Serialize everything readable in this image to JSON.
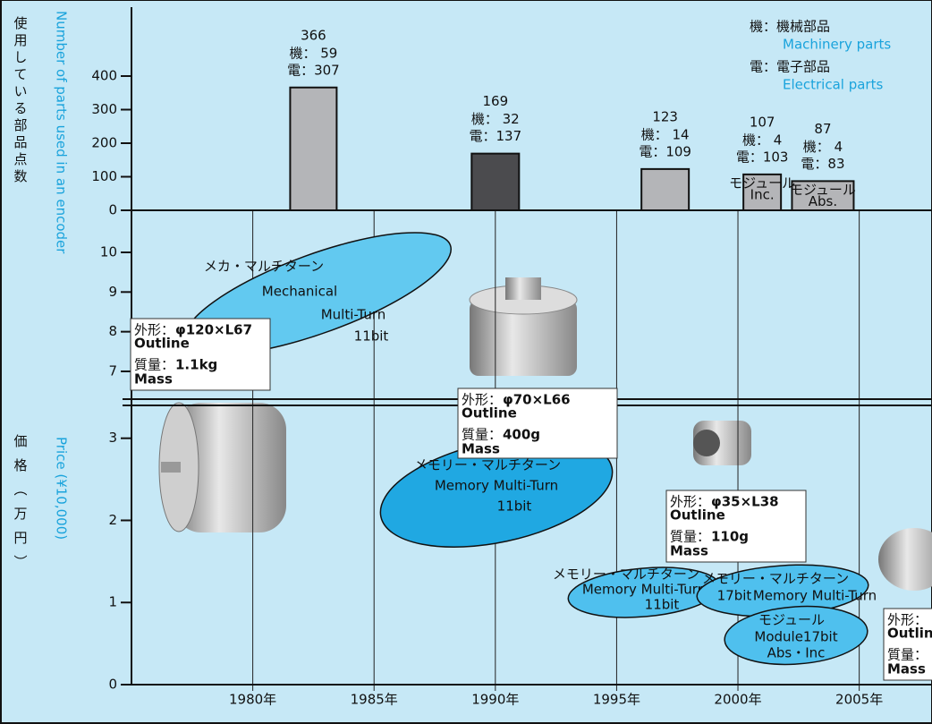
{
  "chart_data": {
    "type": "bar",
    "y_title": "使用している部品点数",
    "y_title_en": "Number of parts used in an encoder",
    "x": [
      1982.5,
      1990,
      1997,
      2001,
      2003.5
    ],
    "values": [
      366,
      169,
      123,
      107,
      87
    ],
    "colors": [
      "#b4b5b8",
      "#4b4b4e",
      "#b4b5b8",
      "#b4b5b8",
      "#b4b5b8"
    ],
    "breakdown": [
      {
        "name": "機：機械部品",
        "name_en": "Machinery parts",
        "values": [
          59,
          32,
          14,
          4,
          4
        ],
        "value_labels": [
          "機：  59",
          "機：  32",
          "機：  14",
          "機：   4",
          "機：  4"
        ]
      },
      {
        "name": "電：電子部品",
        "name_en": "Electrical parts",
        "values": [
          307,
          137,
          109,
          103,
          83
        ],
        "value_labels": [
          "電：307",
          "電：137",
          "電：109",
          "電：103",
          "電：83"
        ]
      }
    ],
    "annotations": [
      [
        "モジュール",
        "Inc."
      ],
      [
        "モジュール",
        "Abs."
      ]
    ],
    "ylim": [
      0,
      600
    ],
    "yticks": [
      0,
      100,
      200,
      300,
      400
    ],
    "xlim": [
      1975,
      2008
    ],
    "xticks": [
      {
        "value": 1980,
        "label": "1980年"
      },
      {
        "value": 1985,
        "label": "1985年"
      },
      {
        "value": 1990,
        "label": "1990年"
      },
      {
        "value": 1995,
        "label": "1995年"
      },
      {
        "value": 2000,
        "label": "2000年"
      },
      {
        "value": 2005,
        "label": "2005年"
      }
    ]
  },
  "price_chart": {
    "y_title": "価格（万円）",
    "y_title_en": "Price (¥10,000)",
    "upper_ylim": [
      6.3,
      11.06
    ],
    "upper_yticks": [
      7,
      8,
      9,
      10
    ],
    "lower_ylim": [
      0,
      3.4
    ],
    "lower_yticks": [
      0,
      1,
      2,
      3
    ]
  },
  "product_types": [
    {
      "lines": [
        "メカ・マルチターン",
        "Mechanical",
        "Multi-Turn",
        "11bit"
      ]
    },
    {
      "lines": [
        "メモリー・マルチターン",
        "Memory Multi-Turn",
        "11bit"
      ]
    },
    {
      "lines": [
        "メモリー・マルチターン",
        "Memory Multi-Turn",
        "11bit"
      ]
    },
    {
      "lines": [
        "メモリー・マルチターン",
        "17bit",
        "Memory Multi-Turn"
      ]
    },
    {
      "lines": [
        "モジュール",
        "Module17bit",
        "Abs・Inc"
      ]
    }
  ],
  "specs": [
    {
      "outline_label": "外形：",
      "outline": "φ120×L67",
      "outline_en": "Outline",
      "mass_label": "質量：",
      "mass": "1.1kg",
      "mass_en": "Mass"
    },
    {
      "outline_label": "外形：",
      "outline": "φ70×L66",
      "outline_en": "Outline",
      "mass_label": "質量：",
      "mass": "400g",
      "mass_en": "Mass"
    },
    {
      "outline_label": "外形：",
      "outline": "φ35×L38",
      "outline_en": "Outline",
      "mass_label": "質量：",
      "mass": "110g",
      "mass_en": "Mass"
    },
    {
      "outline_label": "外形：",
      "outline_en": "Outline",
      "mass_label": "質量：",
      "mass_en": "Mass"
    }
  ]
}
